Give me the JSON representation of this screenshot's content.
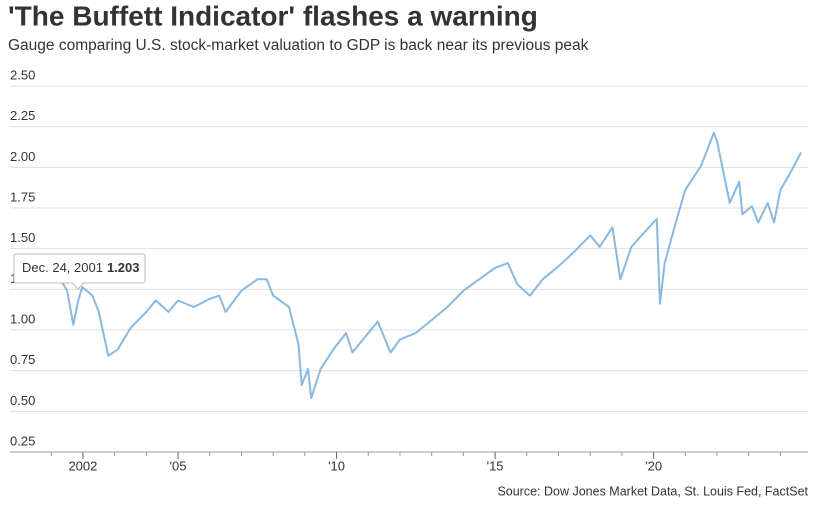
{
  "chart_data": {
    "type": "line",
    "title": "'The Buffett Indicator' flashes a warning",
    "subtitle": "Gauge comparing U.S. stock-market valuation to GDP is back near its previous peak",
    "source": "Source: Dow Jones Market Data, St. Louis Fed, FactSet",
    "tooltip": {
      "date": "Dec. 24, 2001",
      "value": 1.203
    },
    "x": [
      2001.2,
      2001.5,
      2001.7,
      2001.85,
      2001.98,
      2002.3,
      2002.5,
      2002.8,
      2003.1,
      2003.5,
      2004.0,
      2004.3,
      2004.7,
      2005.0,
      2005.5,
      2006.0,
      2006.3,
      2006.5,
      2007.0,
      2007.5,
      2007.8,
      2008.0,
      2008.5,
      2008.8,
      2008.9,
      2009.1,
      2009.2,
      2009.5,
      2009.9,
      2010.3,
      2010.5,
      2011.0,
      2011.3,
      2011.7,
      2012.0,
      2012.5,
      2013.0,
      2013.5,
      2014.0,
      2014.5,
      2015.0,
      2015.4,
      2015.7,
      2016.1,
      2016.5,
      2017.0,
      2017.5,
      2018.0,
      2018.3,
      2018.7,
      2018.95,
      2019.3,
      2019.9,
      2020.1,
      2020.2,
      2020.35,
      2020.7,
      2021.0,
      2021.5,
      2021.9,
      2022.0,
      2022.4,
      2022.7,
      2022.8,
      2023.1,
      2023.3,
      2023.6,
      2023.8,
      2024.0,
      2024.3,
      2024.65
    ],
    "series": [
      {
        "name": "Buffett Indicator",
        "color": "#8ab8de",
        "values": [
          1.28,
          1.18,
          0.97,
          1.12,
          1.203,
          1.15,
          1.05,
          0.78,
          0.82,
          0.95,
          1.05,
          1.12,
          1.05,
          1.12,
          1.08,
          1.13,
          1.15,
          1.05,
          1.18,
          1.25,
          1.25,
          1.15,
          1.08,
          0.85,
          0.6,
          0.7,
          0.52,
          0.7,
          0.82,
          0.92,
          0.8,
          0.92,
          0.99,
          0.8,
          0.88,
          0.92,
          1.0,
          1.08,
          1.18,
          1.25,
          1.32,
          1.35,
          1.22,
          1.15,
          1.25,
          1.33,
          1.42,
          1.52,
          1.45,
          1.57,
          1.25,
          1.45,
          1.58,
          1.62,
          1.1,
          1.35,
          1.6,
          1.8,
          1.95,
          2.15,
          2.1,
          1.72,
          1.85,
          1.65,
          1.7,
          1.6,
          1.72,
          1.6,
          1.8,
          1.9,
          2.03
        ]
      }
    ],
    "xlim": [
      1999.7,
      2024.87
    ],
    "xticks": [
      {
        "value": 2002,
        "label": "2002"
      },
      {
        "value": 2005,
        "label": "'05"
      },
      {
        "value": 2010,
        "label": "'10"
      },
      {
        "value": 2015,
        "label": "'15"
      },
      {
        "value": 2020,
        "label": "'20"
      }
    ],
    "xminor_ticks": [
      2001,
      2002,
      2003,
      2004,
      2005,
      2006,
      2007,
      2008,
      2009,
      2010,
      2011,
      2012,
      2013,
      2014,
      2015,
      2016,
      2017,
      2018,
      2019,
      2020,
      2021,
      2022,
      2023,
      2024
    ],
    "ylim": [
      0.25,
      2.5
    ],
    "yticks": [
      {
        "value": 2.5,
        "label": "2.50"
      },
      {
        "value": 2.25,
        "label": "2.25"
      },
      {
        "value": 2.0,
        "label": "2.00"
      },
      {
        "value": 1.75,
        "label": "1.75"
      },
      {
        "value": 1.5,
        "label": "1.50"
      },
      {
        "value": 1.25,
        "label": "1.25"
      },
      {
        "value": 1.0,
        "label": "1.00"
      },
      {
        "value": 0.75,
        "label": "0.75"
      },
      {
        "value": 0.5,
        "label": "0.50"
      },
      {
        "value": 0.25,
        "label": "0.25"
      }
    ],
    "grid": true
  }
}
